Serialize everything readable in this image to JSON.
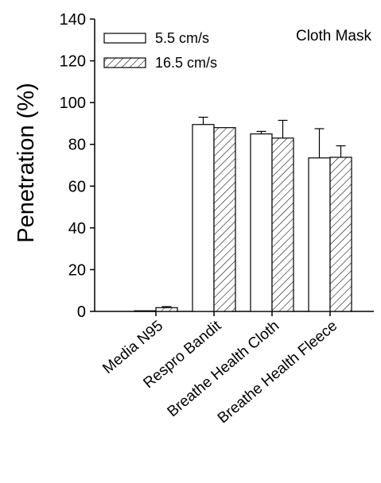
{
  "chart_data": {
    "type": "bar",
    "title": "",
    "annotation": "Cloth Mask",
    "xlabel": "",
    "ylabel": "Penetration (%)",
    "ylim": [
      0,
      140
    ],
    "yticks": [
      0,
      20,
      40,
      60,
      80,
      100,
      120,
      140
    ],
    "grid": false,
    "legend_position": "top-left",
    "categories": [
      "Media N95",
      "Respro Bandit",
      "Breathe Health Cloth",
      "Breathe Health Fleece"
    ],
    "series": [
      {
        "name": "5.5 cm/s",
        "fill": "open",
        "values": [
          0.3,
          89.5,
          85.0,
          73.5
        ],
        "error": [
          0,
          3.5,
          1.2,
          14.0
        ]
      },
      {
        "name": "16.5 cm/s",
        "fill": "hatched",
        "values": [
          1.8,
          88.0,
          83.0,
          73.8
        ],
        "error": [
          0.5,
          0,
          8.5,
          5.5
        ]
      }
    ]
  }
}
